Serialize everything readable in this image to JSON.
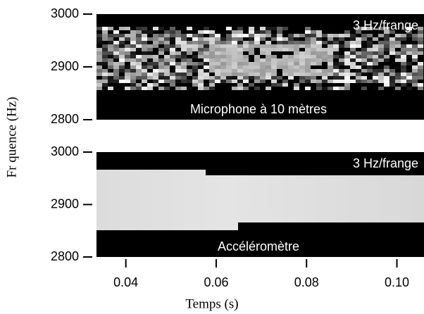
{
  "chart_data": [
    {
      "type": "image",
      "annotations": [
        "3 Hz/frange",
        "Microphone à 10 mètres"
      ],
      "xlim": [
        0.0335,
        0.106
      ],
      "ylim": [
        2800,
        3000
      ],
      "yticks": [
        2800,
        2900,
        3000
      ]
    },
    {
      "type": "image",
      "annotations": [
        "3 Hz/frange",
        "Accéléromètre"
      ],
      "xlabel": "Temps (s)",
      "ylabel": "Fr quence (Hz)",
      "xlim": [
        0.0335,
        0.106
      ],
      "xticks": [
        {
          "value": 0.04,
          "label": "0.04"
        },
        {
          "value": 0.06,
          "label": "0.06"
        },
        {
          "value": 0.08,
          "label": "0.08"
        },
        {
          "value": 0.1,
          "label": "0.10"
        }
      ],
      "ylim": [
        2800,
        3000
      ],
      "yticks": [
        2800,
        2900,
        3000
      ]
    }
  ]
}
